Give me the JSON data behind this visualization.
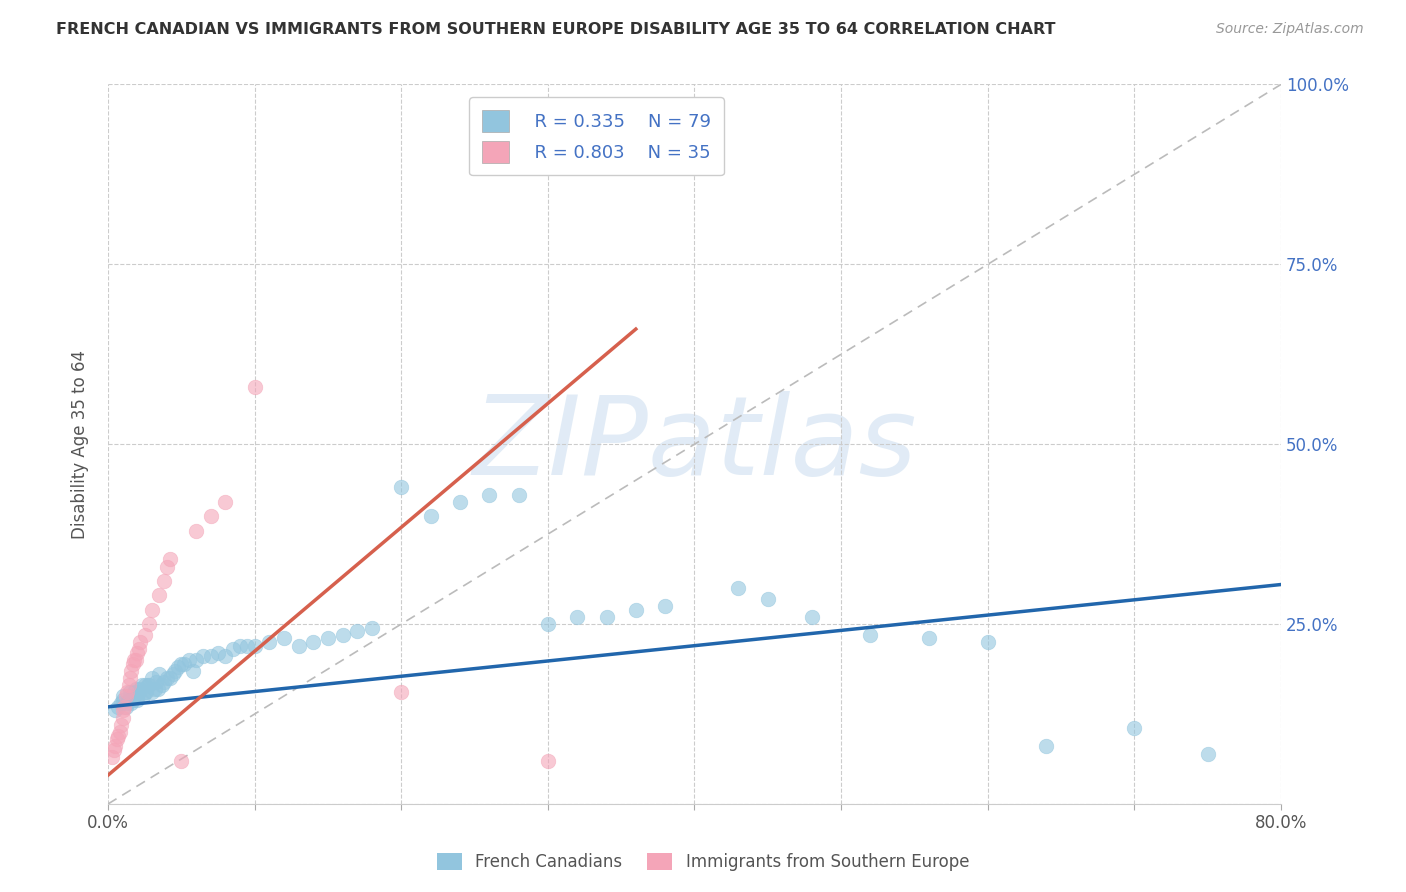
{
  "title": "FRENCH CANADIAN VS IMMIGRANTS FROM SOUTHERN EUROPE DISABILITY AGE 35 TO 64 CORRELATION CHART",
  "source": "Source: ZipAtlas.com",
  "ylabel": "Disability Age 35 to 64",
  "xlim": [
    0.0,
    0.8
  ],
  "ylim": [
    0.0,
    1.0
  ],
  "xticks": [
    0.0,
    0.1,
    0.2,
    0.3,
    0.4,
    0.5,
    0.6,
    0.7,
    0.8
  ],
  "xticklabels": [
    "0.0%",
    "",
    "",
    "",
    "",
    "",
    "",
    "",
    "80.0%"
  ],
  "yticks_right": [
    0.25,
    0.5,
    0.75,
    1.0
  ],
  "ytick_right_labels": [
    "25.0%",
    "50.0%",
    "75.0%",
    "100.0%"
  ],
  "blue_R": "R = 0.335",
  "blue_N": "N = 79",
  "pink_R": "R = 0.803",
  "pink_N": "N = 35",
  "blue_scatter_color": "#92c5de",
  "pink_scatter_color": "#f4a5b8",
  "trend_blue_color": "#2166ac",
  "trend_pink_color": "#d6604d",
  "ref_line_color": "#bbbbbb",
  "watermark": "ZIPatlas",
  "watermark_color": "#c9dcef",
  "legend_labels": [
    "French Canadians",
    "Immigrants from Southern Europe"
  ],
  "blue_x": [
    0.005,
    0.007,
    0.009,
    0.01,
    0.01,
    0.012,
    0.013,
    0.014,
    0.015,
    0.015,
    0.016,
    0.017,
    0.018,
    0.018,
    0.019,
    0.02,
    0.02,
    0.021,
    0.022,
    0.023,
    0.024,
    0.025,
    0.025,
    0.026,
    0.027,
    0.028,
    0.03,
    0.03,
    0.032,
    0.033,
    0.034,
    0.035,
    0.037,
    0.038,
    0.04,
    0.042,
    0.044,
    0.046,
    0.048,
    0.05,
    0.052,
    0.055,
    0.058,
    0.06,
    0.065,
    0.07,
    0.075,
    0.08,
    0.085,
    0.09,
    0.095,
    0.1,
    0.11,
    0.12,
    0.13,
    0.14,
    0.15,
    0.16,
    0.17,
    0.18,
    0.2,
    0.22,
    0.24,
    0.26,
    0.28,
    0.3,
    0.32,
    0.34,
    0.36,
    0.38,
    0.43,
    0.45,
    0.48,
    0.52,
    0.56,
    0.6,
    0.64,
    0.7,
    0.75
  ],
  "blue_y": [
    0.13,
    0.135,
    0.14,
    0.145,
    0.15,
    0.135,
    0.14,
    0.145,
    0.15,
    0.155,
    0.14,
    0.145,
    0.15,
    0.155,
    0.16,
    0.145,
    0.15,
    0.155,
    0.16,
    0.165,
    0.15,
    0.155,
    0.165,
    0.155,
    0.165,
    0.165,
    0.155,
    0.175,
    0.16,
    0.17,
    0.16,
    0.18,
    0.165,
    0.17,
    0.175,
    0.175,
    0.18,
    0.185,
    0.19,
    0.195,
    0.195,
    0.2,
    0.185,
    0.2,
    0.205,
    0.205,
    0.21,
    0.205,
    0.215,
    0.22,
    0.22,
    0.22,
    0.225,
    0.23,
    0.22,
    0.225,
    0.23,
    0.235,
    0.24,
    0.245,
    0.44,
    0.4,
    0.42,
    0.43,
    0.43,
    0.25,
    0.26,
    0.26,
    0.27,
    0.275,
    0.3,
    0.285,
    0.26,
    0.235,
    0.23,
    0.225,
    0.08,
    0.105,
    0.07
  ],
  "pink_x": [
    0.003,
    0.004,
    0.005,
    0.006,
    0.007,
    0.008,
    0.009,
    0.01,
    0.01,
    0.011,
    0.012,
    0.013,
    0.014,
    0.015,
    0.016,
    0.017,
    0.018,
    0.019,
    0.02,
    0.021,
    0.022,
    0.025,
    0.028,
    0.03,
    0.035,
    0.038,
    0.04,
    0.042,
    0.05,
    0.06,
    0.07,
    0.08,
    0.1,
    0.2,
    0.3
  ],
  "pink_y": [
    0.065,
    0.075,
    0.08,
    0.09,
    0.095,
    0.1,
    0.11,
    0.12,
    0.13,
    0.135,
    0.15,
    0.155,
    0.165,
    0.175,
    0.185,
    0.195,
    0.2,
    0.2,
    0.21,
    0.215,
    0.225,
    0.235,
    0.25,
    0.27,
    0.29,
    0.31,
    0.33,
    0.34,
    0.06,
    0.38,
    0.4,
    0.42,
    0.58,
    0.155,
    0.06
  ],
  "blue_trend_x": [
    0.0,
    0.8
  ],
  "blue_trend_y": [
    0.135,
    0.305
  ],
  "pink_trend_x_start": 0.0,
  "pink_trend_x_end": 0.36,
  "pink_trend_y_start": 0.04,
  "pink_trend_y_end": 0.66
}
